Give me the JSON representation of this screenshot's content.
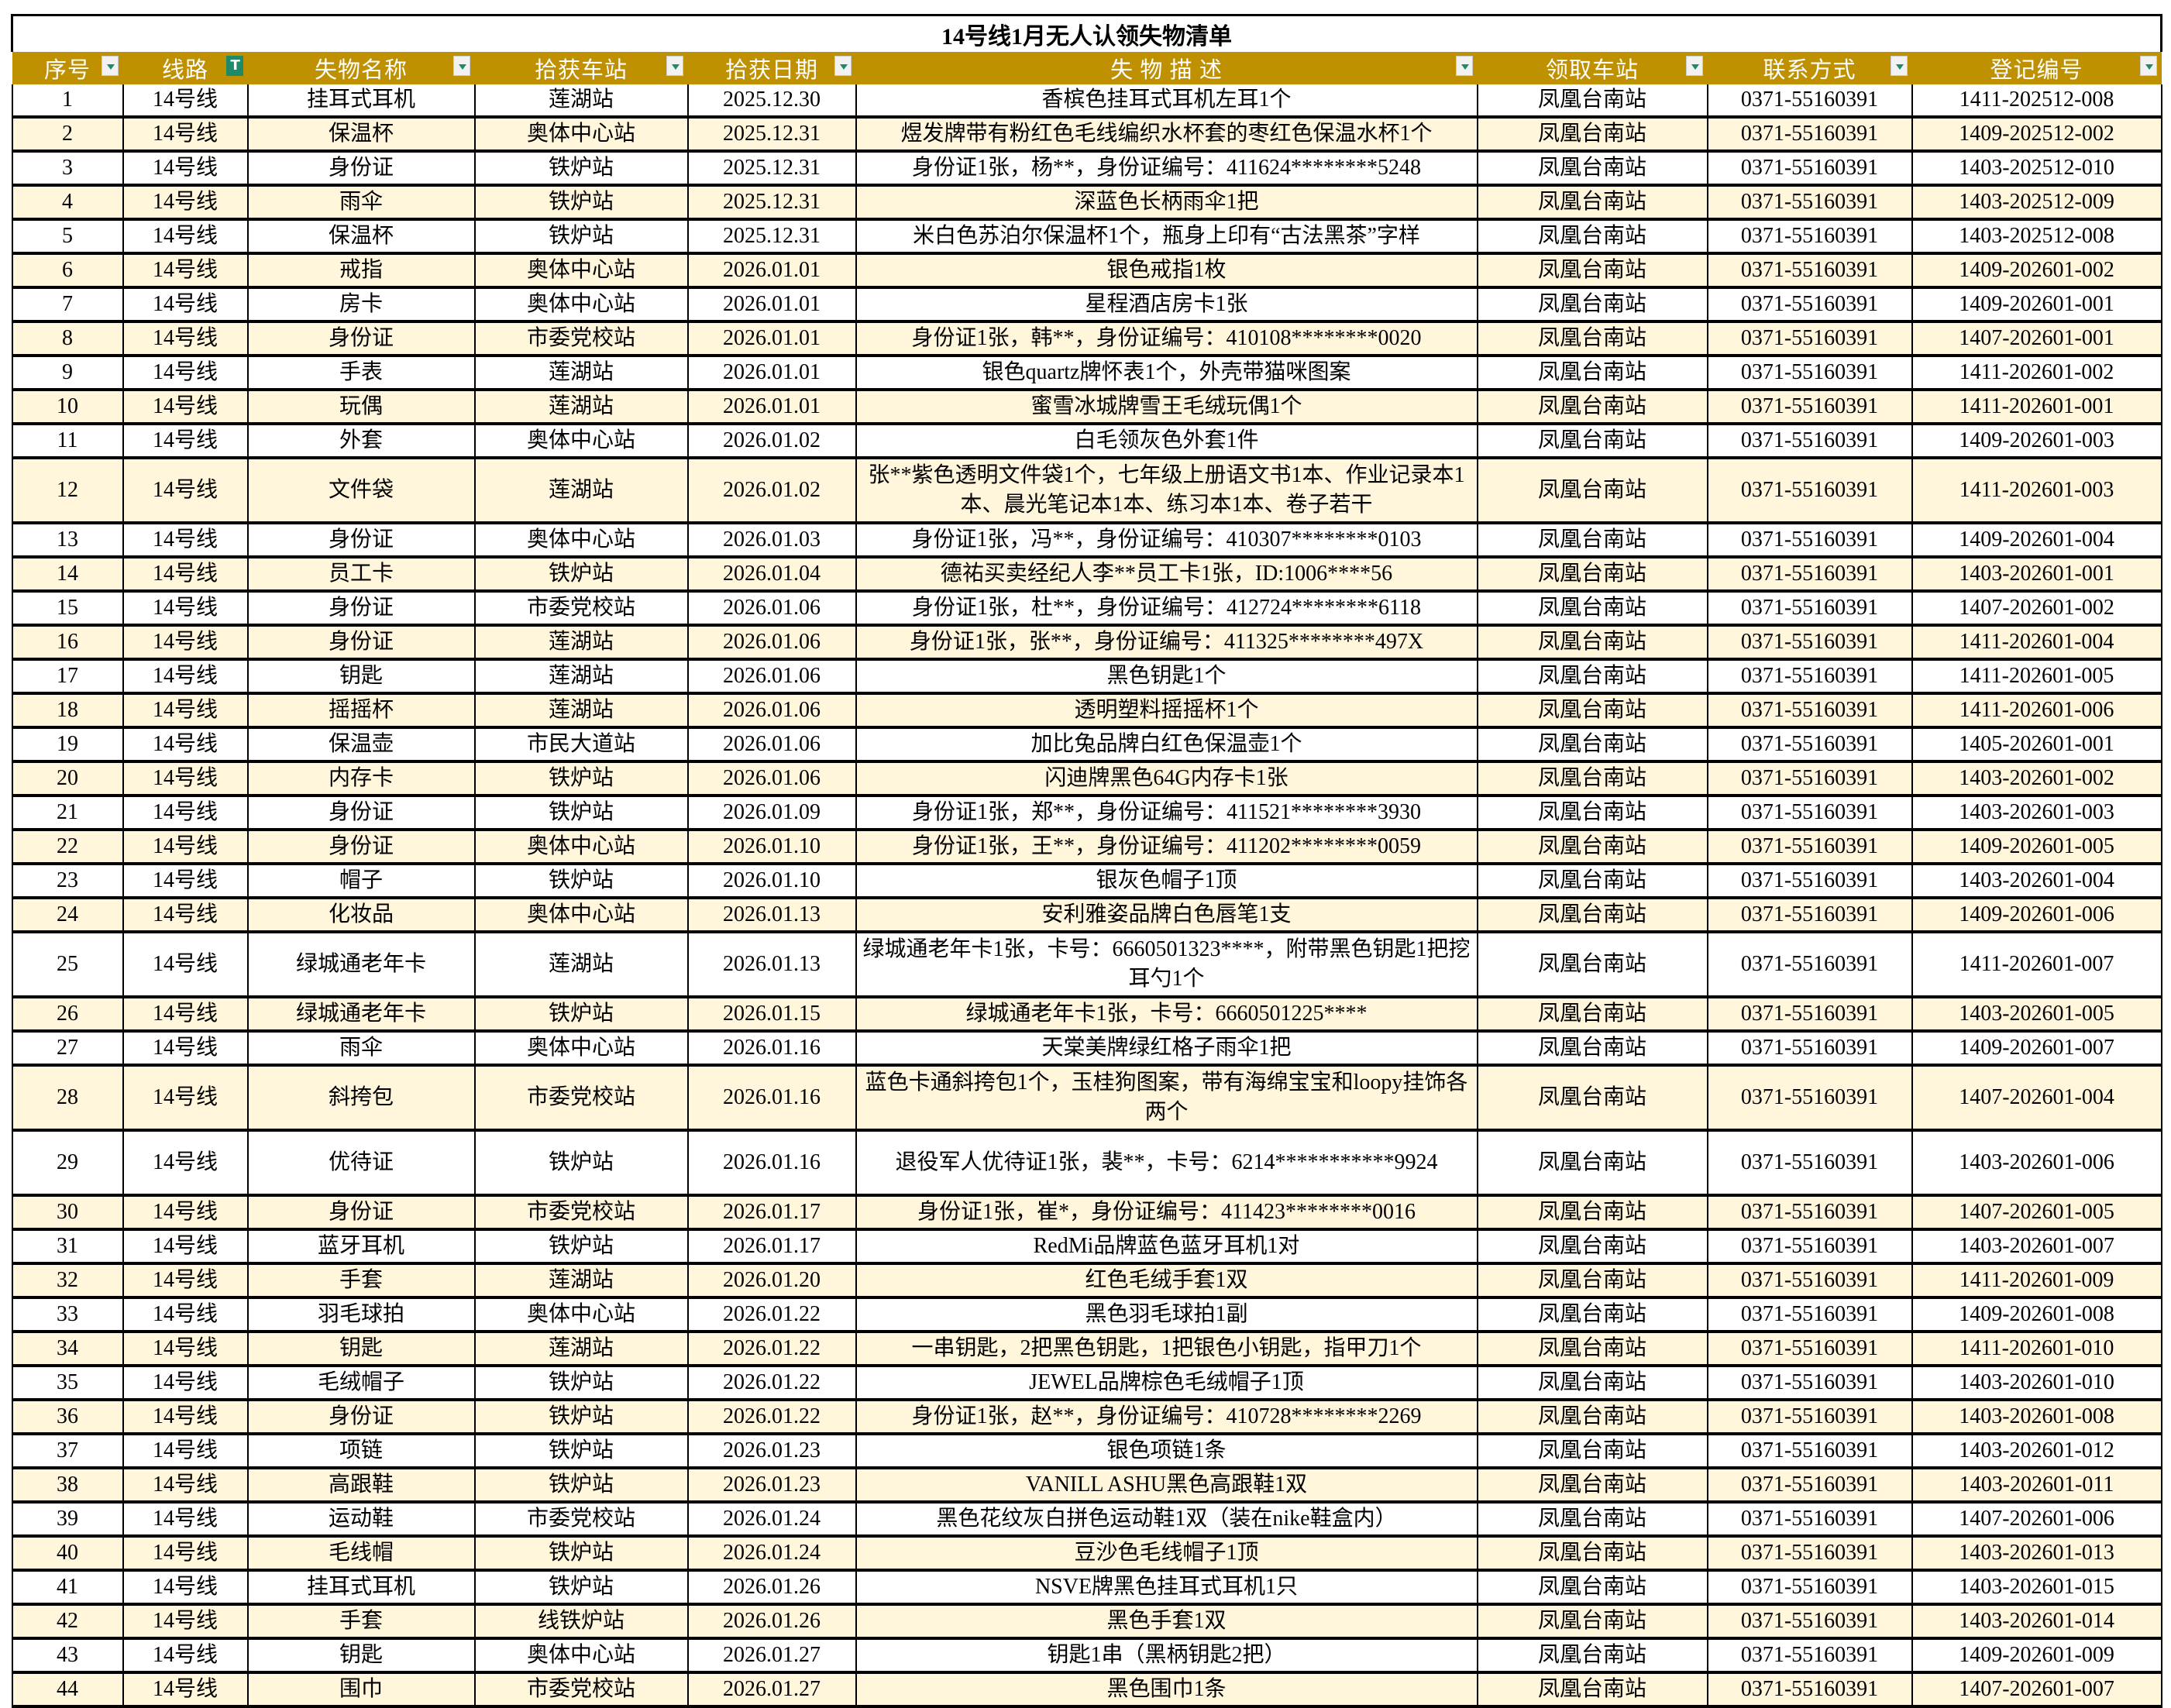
{
  "title": "14号线1月无人认领失物清单",
  "colors": {
    "header_bg": "#bf9000",
    "header_text": "#ffffff",
    "stripe": "#fff6dc",
    "filter_icon": "#1e8a6a"
  },
  "columns": [
    "序号",
    "线路",
    "失物名称",
    "拾获车站",
    "拾获日期",
    "失 物 描 述",
    "领取车站",
    "联系方式",
    "登记编号"
  ],
  "active_filter_column": "线路",
  "rows": [
    [
      "1",
      "14号线",
      "挂耳式耳机",
      "莲湖站",
      "2025.12.30",
      "香槟色挂耳式耳机左耳1个",
      "凤凰台南站",
      "0371-55160391",
      "1411-202512-008"
    ],
    [
      "2",
      "14号线",
      "保温杯",
      "奥体中心站",
      "2025.12.31",
      "煜发牌带有粉红色毛线编织水杯套的枣红色保温水杯1个",
      "凤凰台南站",
      "0371-55160391",
      "1409-202512-002"
    ],
    [
      "3",
      "14号线",
      "身份证",
      "铁炉站",
      "2025.12.31",
      "身份证1张，杨**，身份证编号：411624********5248",
      "凤凰台南站",
      "0371-55160391",
      "1403-202512-010"
    ],
    [
      "4",
      "14号线",
      "雨伞",
      "铁炉站",
      "2025.12.31",
      "深蓝色长柄雨伞1把",
      "凤凰台南站",
      "0371-55160391",
      "1403-202512-009"
    ],
    [
      "5",
      "14号线",
      "保温杯",
      "铁炉站",
      "2025.12.31",
      "米白色苏泊尔保温杯1个，瓶身上印有“古法黑茶”字样",
      "凤凰台南站",
      "0371-55160391",
      "1403-202512-008"
    ],
    [
      "6",
      "14号线",
      "戒指",
      "奥体中心站",
      "2026.01.01",
      "银色戒指1枚",
      "凤凰台南站",
      "0371-55160391",
      "1409-202601-002"
    ],
    [
      "7",
      "14号线",
      "房卡",
      "奥体中心站",
      "2026.01.01",
      "星程酒店房卡1张",
      "凤凰台南站",
      "0371-55160391",
      "1409-202601-001"
    ],
    [
      "8",
      "14号线",
      "身份证",
      "市委党校站",
      "2026.01.01",
      "身份证1张，韩**，身份证编号：410108********0020",
      "凤凰台南站",
      "0371-55160391",
      "1407-202601-001"
    ],
    [
      "9",
      "14号线",
      "手表",
      "莲湖站",
      "2026.01.01",
      "银色quartz牌怀表1个，外壳带猫咪图案",
      "凤凰台南站",
      "0371-55160391",
      "1411-202601-002"
    ],
    [
      "10",
      "14号线",
      "玩偶",
      "莲湖站",
      "2026.01.01",
      "蜜雪冰城牌雪王毛绒玩偶1个",
      "凤凰台南站",
      "0371-55160391",
      "1411-202601-001"
    ],
    [
      "11",
      "14号线",
      "外套",
      "奥体中心站",
      "2026.01.02",
      "白毛领灰色外套1件",
      "凤凰台南站",
      "0371-55160391",
      "1409-202601-003"
    ],
    [
      "12",
      "14号线",
      "文件袋",
      "莲湖站",
      "2026.01.02",
      "张**紫色透明文件袋1个，七年级上册语文书1本、作业记录本1本、晨光笔记本1本、练习本1本、卷子若干",
      "凤凰台南站",
      "0371-55160391",
      "1411-202601-003"
    ],
    [
      "13",
      "14号线",
      "身份证",
      "奥体中心站",
      "2026.01.03",
      "身份证1张，冯**，身份证编号：410307********0103",
      "凤凰台南站",
      "0371-55160391",
      "1409-202601-004"
    ],
    [
      "14",
      "14号线",
      "员工卡",
      "铁炉站",
      "2026.01.04",
      "德祐买卖经纪人李**员工卡1张，ID:1006****56",
      "凤凰台南站",
      "0371-55160391",
      "1403-202601-001"
    ],
    [
      "15",
      "14号线",
      "身份证",
      "市委党校站",
      "2026.01.06",
      "身份证1张，杜**，身份证编号：412724********6118",
      "凤凰台南站",
      "0371-55160391",
      "1407-202601-002"
    ],
    [
      "16",
      "14号线",
      "身份证",
      "莲湖站",
      "2026.01.06",
      "身份证1张，张**，身份证编号：411325********497X",
      "凤凰台南站",
      "0371-55160391",
      "1411-202601-004"
    ],
    [
      "17",
      "14号线",
      "钥匙",
      "莲湖站",
      "2026.01.06",
      "黑色钥匙1个",
      "凤凰台南站",
      "0371-55160391",
      "1411-202601-005"
    ],
    [
      "18",
      "14号线",
      "摇摇杯",
      "莲湖站",
      "2026.01.06",
      "透明塑料摇摇杯1个",
      "凤凰台南站",
      "0371-55160391",
      "1411-202601-006"
    ],
    [
      "19",
      "14号线",
      "保温壶",
      "市民大道站",
      "2026.01.06",
      "加比兔品牌白红色保温壶1个",
      "凤凰台南站",
      "0371-55160391",
      "1405-202601-001"
    ],
    [
      "20",
      "14号线",
      "内存卡",
      "铁炉站",
      "2026.01.06",
      "闪迪牌黑色64G内存卡1张",
      "凤凰台南站",
      "0371-55160391",
      "1403-202601-002"
    ],
    [
      "21",
      "14号线",
      "身份证",
      "铁炉站",
      "2026.01.09",
      "身份证1张，郑**，身份证编号：411521********3930",
      "凤凰台南站",
      "0371-55160391",
      "1403-202601-003"
    ],
    [
      "22",
      "14号线",
      "身份证",
      "奥体中心站",
      "2026.01.10",
      "身份证1张，王**，身份证编号：411202********0059",
      "凤凰台南站",
      "0371-55160391",
      "1409-202601-005"
    ],
    [
      "23",
      "14号线",
      "帽子",
      "铁炉站",
      "2026.01.10",
      "银灰色帽子1顶",
      "凤凰台南站",
      "0371-55160391",
      "1403-202601-004"
    ],
    [
      "24",
      "14号线",
      "化妆品",
      "奥体中心站",
      "2026.01.13",
      "安利雅姿品牌白色唇笔1支",
      "凤凰台南站",
      "0371-55160391",
      "1409-202601-006"
    ],
    [
      "25",
      "14号线",
      "绿城通老年卡",
      "莲湖站",
      "2026.01.13",
      "绿城通老年卡1张，卡号：6660501323****，附带黑色钥匙1把挖耳勺1个",
      "凤凰台南站",
      "0371-55160391",
      "1411-202601-007"
    ],
    [
      "26",
      "14号线",
      "绿城通老年卡",
      "铁炉站",
      "2026.01.15",
      "绿城通老年卡1张，卡号：6660501225****",
      "凤凰台南站",
      "0371-55160391",
      "1403-202601-005"
    ],
    [
      "27",
      "14号线",
      "雨伞",
      "奥体中心站",
      "2026.01.16",
      "天棠美牌绿红格子雨伞1把",
      "凤凰台南站",
      "0371-55160391",
      "1409-202601-007"
    ],
    [
      "28",
      "14号线",
      "斜挎包",
      "市委党校站",
      "2026.01.16",
      "蓝色卡通斜挎包1个，玉桂狗图案，带有海绵宝宝和loopy挂饰各两个",
      "凤凰台南站",
      "0371-55160391",
      "1407-202601-004"
    ],
    [
      "29",
      "14号线",
      "优待证",
      "铁炉站",
      "2026.01.16",
      "退役军人优待证1张，裴**，卡号：6214***********9924",
      "凤凰台南站",
      "0371-55160391",
      "1403-202601-006"
    ],
    [
      "30",
      "14号线",
      "身份证",
      "市委党校站",
      "2026.01.17",
      "身份证1张，崔*，身份证编号：411423********0016",
      "凤凰台南站",
      "0371-55160391",
      "1407-202601-005"
    ],
    [
      "31",
      "14号线",
      "蓝牙耳机",
      "铁炉站",
      "2026.01.17",
      "RedMi品牌蓝色蓝牙耳机1对",
      "凤凰台南站",
      "0371-55160391",
      "1403-202601-007"
    ],
    [
      "32",
      "14号线",
      "手套",
      "莲湖站",
      "2026.01.20",
      "红色毛绒手套1双",
      "凤凰台南站",
      "0371-55160391",
      "1411-202601-009"
    ],
    [
      "33",
      "14号线",
      "羽毛球拍",
      "奥体中心站",
      "2026.01.22",
      "黑色羽毛球拍1副",
      "凤凰台南站",
      "0371-55160391",
      "1409-202601-008"
    ],
    [
      "34",
      "14号线",
      "钥匙",
      "莲湖站",
      "2026.01.22",
      "一串钥匙，2把黑色钥匙，1把银色小钥匙，指甲刀1个",
      "凤凰台南站",
      "0371-55160391",
      "1411-202601-010"
    ],
    [
      "35",
      "14号线",
      "毛绒帽子",
      "铁炉站",
      "2026.01.22",
      "JEWEL品牌棕色毛绒帽子1顶",
      "凤凰台南站",
      "0371-55160391",
      "1403-202601-010"
    ],
    [
      "36",
      "14号线",
      "身份证",
      "铁炉站",
      "2026.01.22",
      "身份证1张，赵**，身份证编号：410728********2269",
      "凤凰台南站",
      "0371-55160391",
      "1403-202601-008"
    ],
    [
      "37",
      "14号线",
      "项链",
      "铁炉站",
      "2026.01.23",
      "银色项链1条",
      "凤凰台南站",
      "0371-55160391",
      "1403-202601-012"
    ],
    [
      "38",
      "14号线",
      "高跟鞋",
      "铁炉站",
      "2026.01.23",
      "VANILL ASHU黑色高跟鞋1双",
      "凤凰台南站",
      "0371-55160391",
      "1403-202601-011"
    ],
    [
      "39",
      "14号线",
      "运动鞋",
      "市委党校站",
      "2026.01.24",
      "黑色花纹灰白拼色运动鞋1双（装在nike鞋盒内）",
      "凤凰台南站",
      "0371-55160391",
      "1407-202601-006"
    ],
    [
      "40",
      "14号线",
      "毛线帽",
      "铁炉站",
      "2026.01.24",
      "豆沙色毛线帽子1顶",
      "凤凰台南站",
      "0371-55160391",
      "1403-202601-013"
    ],
    [
      "41",
      "14号线",
      "挂耳式耳机",
      "铁炉站",
      "2026.01.26",
      "NSVE牌黑色挂耳式耳机1只",
      "凤凰台南站",
      "0371-55160391",
      "1403-202601-015"
    ],
    [
      "42",
      "14号线",
      "手套",
      "线铁炉站",
      "2026.01.26",
      "黑色手套1双",
      "凤凰台南站",
      "0371-55160391",
      "1403-202601-014"
    ],
    [
      "43",
      "14号线",
      "钥匙",
      "奥体中心站",
      "2026.01.27",
      "钥匙1串（黑柄钥匙2把）",
      "凤凰台南站",
      "0371-55160391",
      "1409-202601-009"
    ],
    [
      "44",
      "14号线",
      "围巾",
      "市委党校站",
      "2026.01.27",
      "黑色围巾1条",
      "凤凰台南站",
      "0371-55160391",
      "1407-202601-007"
    ]
  ]
}
